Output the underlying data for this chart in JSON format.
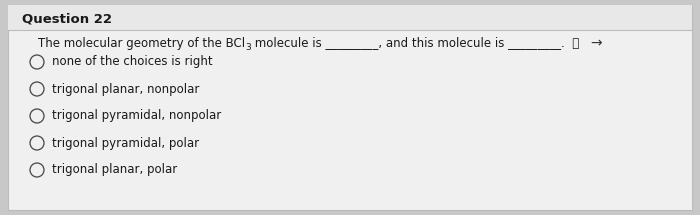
{
  "title": "Question 22",
  "question_line1_pre": "The molecular geometry of the BCl",
  "question_subscript": "3",
  "question_line1_post": " molecule is _________, and this molecule is _________.",
  "options": [
    "none of the choices is right",
    "trigonal planar, nonpolar",
    "trigonal pyramidal, nonpolar",
    "trigonal pyramidal, polar",
    "trigonal planar, polar"
  ],
  "bg_color": "#c8c8c8",
  "content_bg": "#e8e8e8",
  "title_bg": "#e0e0e0",
  "box_bg": "#ececec",
  "title_fontsize": 9.5,
  "question_fontsize": 8.5,
  "option_fontsize": 8.5,
  "circle_color": "#444444",
  "text_color": "#1a1a1a"
}
